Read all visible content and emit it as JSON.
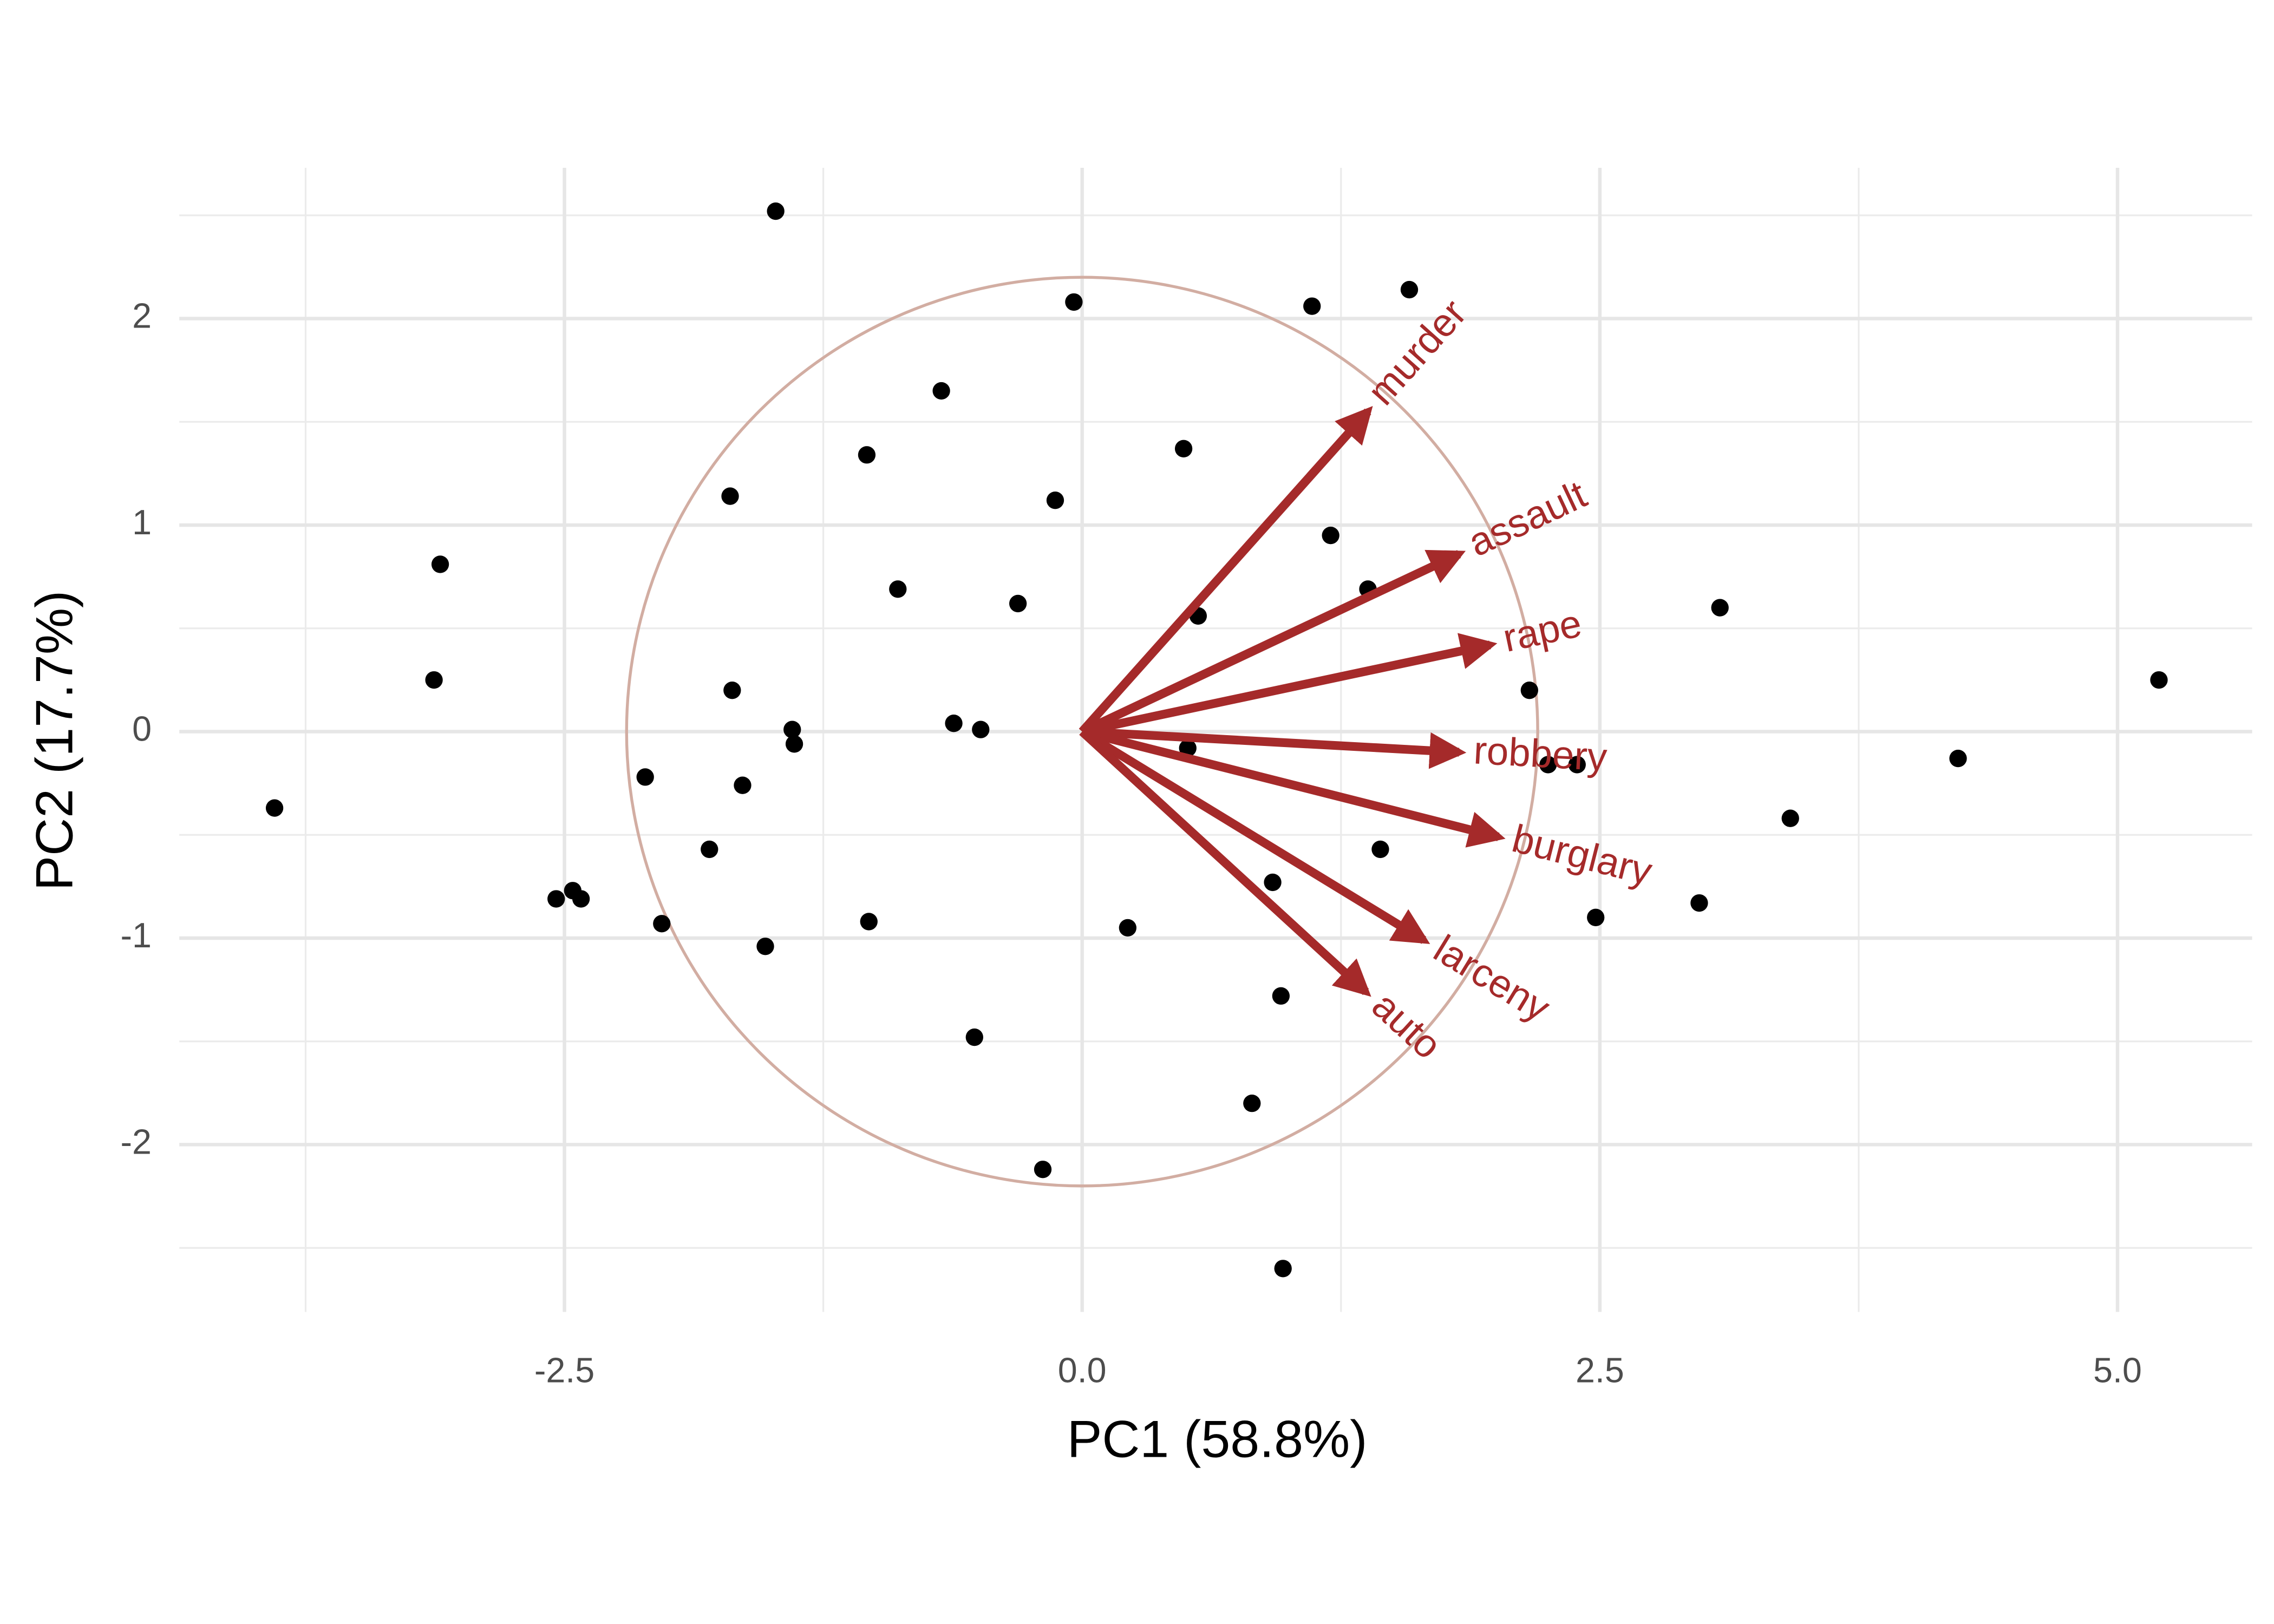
{
  "chart_data": {
    "type": "biplot",
    "x_label": "PC1 (58.8%)",
    "y_label": "PC2 (17.7%)",
    "xlim": [
      -4.36,
      5.65
    ],
    "ylim": [
      -2.81,
      2.73
    ],
    "xticks": [
      {
        "value": -2.5,
        "label": "-2.5"
      },
      {
        "value": 0,
        "label": "0.0"
      },
      {
        "value": 2.5,
        "label": "2.5"
      },
      {
        "value": 5,
        "label": "5.0"
      }
    ],
    "yticks": [
      -2,
      -1,
      0,
      1,
      2
    ],
    "x_minor_ticks": [
      -3.75,
      -1.25,
      1.25,
      3.75
    ],
    "y_minor_ticks": [
      -2.5,
      -1.5,
      -0.5,
      0.5,
      1.5,
      2.5
    ],
    "grid": true,
    "point_color": "#000000",
    "points": {
      "x": [
        -1.48,
        -0.04,
        1.11,
        1.58,
        -0.68,
        -1.04,
        0.49,
        -1.7,
        -0.13,
        -3.1,
        1.2,
        -0.89,
        -0.31,
        1.38,
        0.56,
        3.08,
        -3.13,
        -1.69,
        5.2,
        2.16,
        -1.4,
        -1.39,
        -0.62,
        -0.49,
        0.51,
        2.25,
        2.39,
        4.23,
        -3.9,
        -2.11,
        -1.64,
        3.42,
        -1.8,
        1.44,
        -2.54,
        -2.46,
        -2.42,
        0.92,
        2.98,
        2.48,
        -2.03,
        -1.03,
        0.22,
        -1.53,
        0.96,
        -0.52,
        0.82,
        -0.19,
        0.97
      ],
      "y": [
        2.52,
        2.08,
        2.06,
        2.14,
        1.65,
        1.34,
        1.37,
        1.14,
        1.12,
        0.81,
        0.95,
        0.69,
        0.62,
        0.69,
        0.56,
        0.6,
        0.25,
        0.2,
        0.25,
        0.2,
        0.01,
        -0.06,
        0.04,
        0.01,
        -0.08,
        -0.16,
        -0.16,
        -0.13,
        -0.37,
        -0.22,
        -0.26,
        -0.42,
        -0.57,
        -0.57,
        -0.81,
        -0.77,
        -0.81,
        -0.73,
        -0.83,
        -0.9,
        -0.93,
        -0.92,
        -0.95,
        -1.04,
        -1.28,
        -1.48,
        -1.8,
        -2.12,
        -2.6
      ]
    },
    "vector_color": "#a52a2a",
    "vectors": {
      "names": [
        "murder",
        "assault",
        "rape",
        "robbery",
        "burglary",
        "larceny",
        "auto"
      ],
      "x": [
        1.38,
        1.82,
        1.97,
        1.82,
        2.01,
        1.65,
        1.37
      ],
      "y": [
        1.55,
        0.86,
        0.42,
        -0.1,
        -0.51,
        -1.01,
        -1.26
      ]
    },
    "circle_color": "#d2ada2",
    "circle_radius": 2.2
  }
}
